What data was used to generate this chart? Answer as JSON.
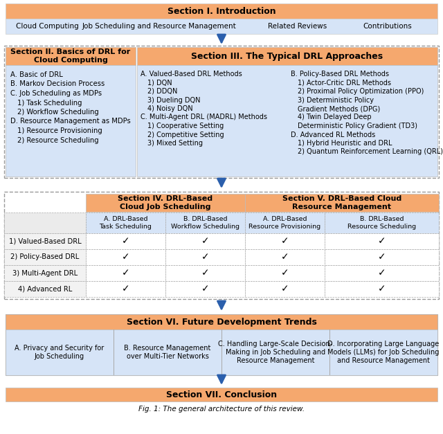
{
  "fig_width": 6.4,
  "fig_height": 6.27,
  "bg_color": "#ffffff",
  "orange_header": "#F5A86E",
  "light_blue_bg": "#D6E4F7",
  "arrow_color": "#2B5FAC",
  "caption": "Fig. 1: The general architecture of this review.",
  "sec1_header": "Section I. Introduction",
  "sec1_items": [
    "Cloud Computing",
    "Job Scheduling and Resource Management",
    "Related Reviews",
    "Contributions"
  ],
  "sec2_header": "Section II. Basics of DRL for\nCloud Computing",
  "sec2_items": [
    [
      "A. Basic of DRL",
      false
    ],
    [
      "B. Markov Decision Process",
      false
    ],
    [
      "C. Job Scheduling as MDPs",
      false
    ],
    [
      "   1) Task Scheduling",
      true
    ],
    [
      "   2) Workflow Scheduling",
      true
    ],
    [
      "D. Resource Management as MDPs",
      false
    ],
    [
      "   1) Resource Provisioning",
      true
    ],
    [
      "   2) Resource Scheduling",
      true
    ]
  ],
  "sec3_header": "Section III. The Typical DRL Approaches",
  "sec3_col1": [
    [
      "A. Valued-Based DRL Methods",
      false
    ],
    [
      "   1) DQN",
      true
    ],
    [
      "   2) DDQN",
      true
    ],
    [
      "   3) Dueling DQN",
      true
    ],
    [
      "   4) Noisy DQN",
      true
    ],
    [
      "C. Multi-Agent DRL (MADRL) Methods",
      false
    ],
    [
      "   1) Cooperative Setting",
      true
    ],
    [
      "   2) Competitive Setting",
      true
    ],
    [
      "   3) Mixed Setting",
      true
    ]
  ],
  "sec3_col2": [
    [
      "B. Policy-Based DRL Methods",
      false
    ],
    [
      "   1) Actor-Critic DRL Methods",
      true
    ],
    [
      "   2) Proximal Policy Optimization (PPO)",
      true
    ],
    [
      "   3) Deterministic Policy",
      true
    ],
    [
      "      Gradient Methods (DPG)",
      true
    ],
    [
      "   4) Twin Delayed Deep",
      true
    ],
    [
      "      Deterministic Policy Gradient (TD3)",
      true
    ],
    [
      "D. Advanced RL Methods",
      false
    ],
    [
      "   1) Hybrid Heuristic and DRL",
      true
    ],
    [
      "   2) Quantum Reinforcement Learning (QRL)",
      true
    ]
  ],
  "sec4_header": "Section IV. DRL-Based\nCloud Job Scheduling",
  "sec5_header": "Section V. DRL-Based Cloud\nResource Management",
  "tbl_col_headers": [
    "",
    "A. DRL-Based\nTask Scheduling",
    "B. DRL-Based\nWorkflow Scheduling",
    "A. DRL-Based\nResource Provisioning",
    "B. DRL-Based\nResource Scheduling"
  ],
  "tbl_rows": [
    [
      "1) Valued-Based DRL",
      true,
      true,
      true,
      true
    ],
    [
      "2) Policy-Based DRL",
      true,
      true,
      true,
      true
    ],
    [
      "3) Multi-Agent DRL",
      true,
      true,
      true,
      true
    ],
    [
      "4) Advanced RL",
      true,
      true,
      true,
      true
    ]
  ],
  "sec6_header": "Section VI. Future Development Trends",
  "sec6_items": [
    "A. Privacy and Security for\nJob Scheduling",
    "B. Resource Management\nover Multi-Tier Networks",
    "C. Handling Large-Scale Decision-\nMaking in Job Scheduling and\nResource Management",
    "D. Incorporating Large Language\nModels (LLMs) for Job Scheduling\nand Resource Management"
  ],
  "sec7_header": "Section VII. Conclusion"
}
